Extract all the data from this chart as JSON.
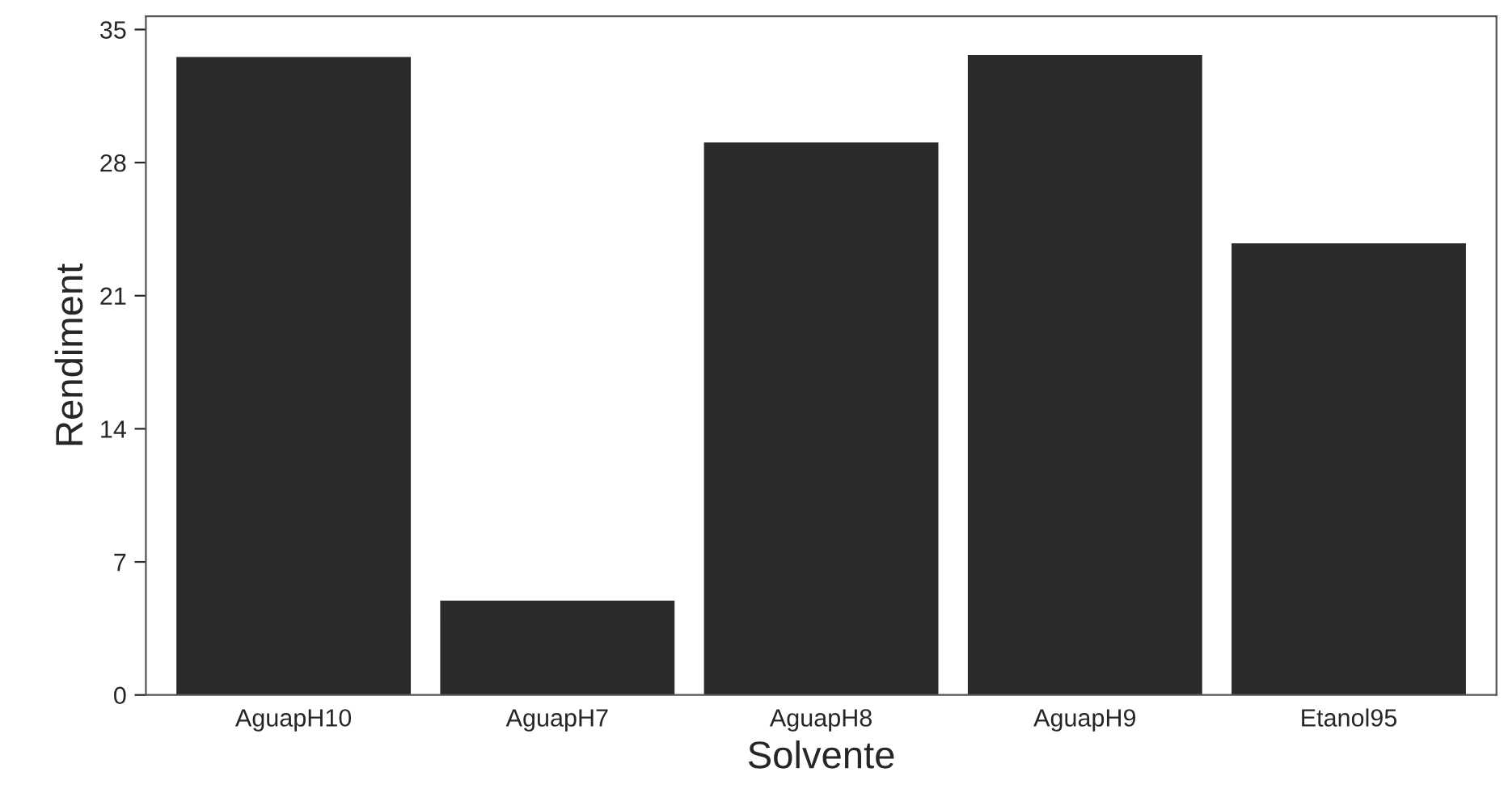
{
  "chart_data": {
    "type": "bar",
    "xlabel": "Solvente",
    "ylabel": "Rendiment",
    "categories": [
      "AguapH10",
      "AguapH7",
      "AguapH8",
      "AguapH9",
      "Etanol95"
    ],
    "values": [
      33.5,
      4.9,
      29.0,
      33.6,
      23.7
    ],
    "color": "#2b2b2b",
    "ylim": [
      0,
      35.7
    ],
    "yticks": [
      0,
      7,
      14,
      21,
      28,
      35
    ],
    "grid": false,
    "legend": false
  }
}
